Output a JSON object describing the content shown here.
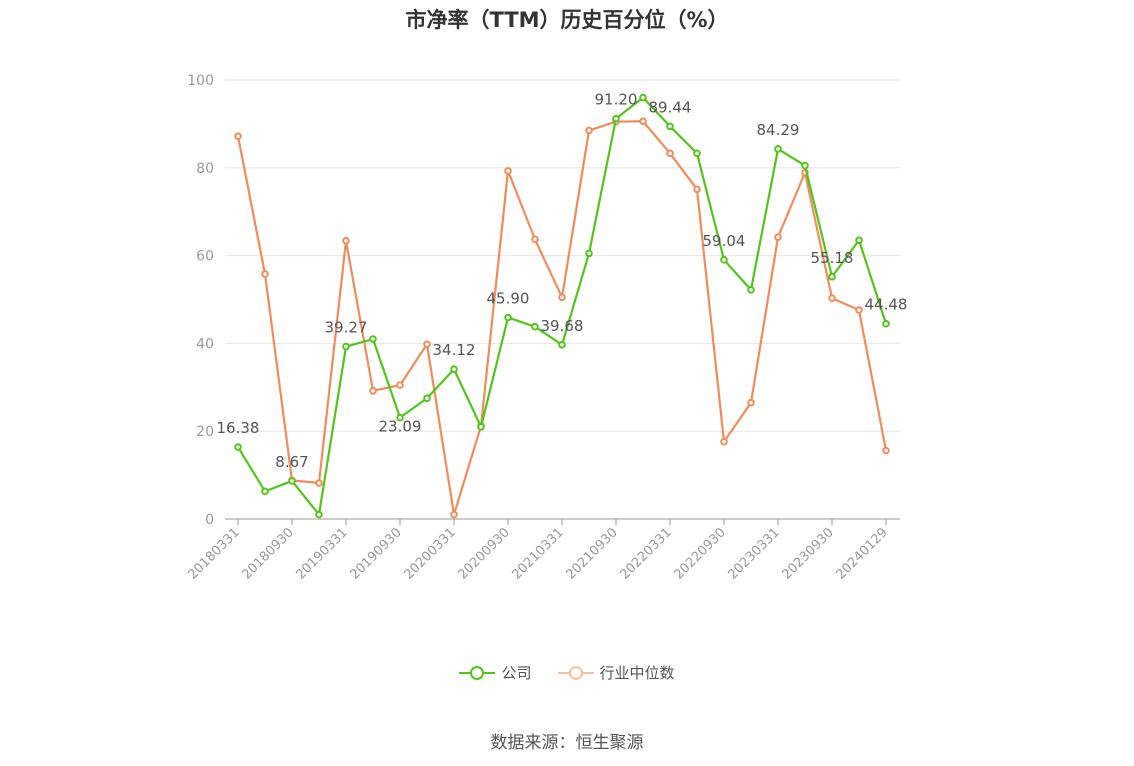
{
  "colors": {
    "company": "#52c41a",
    "industry": "#f08c5a",
    "industry_legend": "#f6bfa3",
    "grid": "#e6e6e6",
    "axis": "#999999"
  },
  "legend": {
    "company": "公司",
    "industry": "行业中位数"
  },
  "source": "数据来源：恒生聚源",
  "chart_data": {
    "type": "line",
    "title": "市净率（TTM）历史百分位（%）",
    "xlabel": "",
    "ylabel": "",
    "ylim": [
      0,
      100
    ],
    "yticks": [
      0,
      20,
      40,
      60,
      80,
      100
    ],
    "grid": true,
    "legend_position": "bottom",
    "categories": [
      "20180331",
      "20180630",
      "20180930",
      "20181231",
      "20190331",
      "20190630",
      "20190930",
      "20191231",
      "20200331",
      "20200630",
      "20200930",
      "20201231",
      "20210331",
      "20210630",
      "20210930",
      "20211231",
      "20220331",
      "20220630",
      "20220930",
      "20221231",
      "20230331",
      "20230630",
      "20230930",
      "20231231",
      "20240129"
    ],
    "x_tick_labels": [
      "20180331",
      "20180930",
      "20190331",
      "20190930",
      "20200331",
      "20200930",
      "20210331",
      "20210930",
      "20220331",
      "20220930",
      "20230331",
      "20230930",
      "20240129"
    ],
    "series": [
      {
        "name": "公司",
        "values": [
          16.38,
          6.3,
          8.67,
          1.0,
          39.27,
          41.0,
          23.09,
          27.5,
          34.12,
          21.0,
          45.9,
          43.8,
          39.68,
          60.5,
          91.2,
          96.0,
          89.44,
          83.3,
          59.04,
          52.2,
          84.29,
          80.5,
          55.18,
          63.5,
          44.48
        ]
      },
      {
        "name": "行业中位数",
        "values": [
          87.2,
          55.8,
          8.8,
          8.2,
          63.4,
          29.2,
          30.5,
          39.8,
          1.0,
          21.2,
          79.3,
          63.7,
          50.5,
          88.5,
          90.5,
          90.6,
          83.3,
          75.1,
          17.6,
          26.5,
          64.2,
          78.9,
          50.3,
          47.6,
          15.6
        ]
      }
    ],
    "data_labels": [
      {
        "index": 0,
        "text": "16.38"
      },
      {
        "index": 2,
        "text": "8.67"
      },
      {
        "index": 4,
        "text": "39.27"
      },
      {
        "index": 6,
        "text": "23.09"
      },
      {
        "index": 8,
        "text": "34.12"
      },
      {
        "index": 10,
        "text": "45.90"
      },
      {
        "index": 12,
        "text": "39.68"
      },
      {
        "index": 14,
        "text": "91.20"
      },
      {
        "index": 16,
        "text": "89.44"
      },
      {
        "index": 18,
        "text": "59.04"
      },
      {
        "index": 20,
        "text": "84.29"
      },
      {
        "index": 22,
        "text": "55.18"
      },
      {
        "index": 24,
        "text": "44.48"
      }
    ]
  }
}
